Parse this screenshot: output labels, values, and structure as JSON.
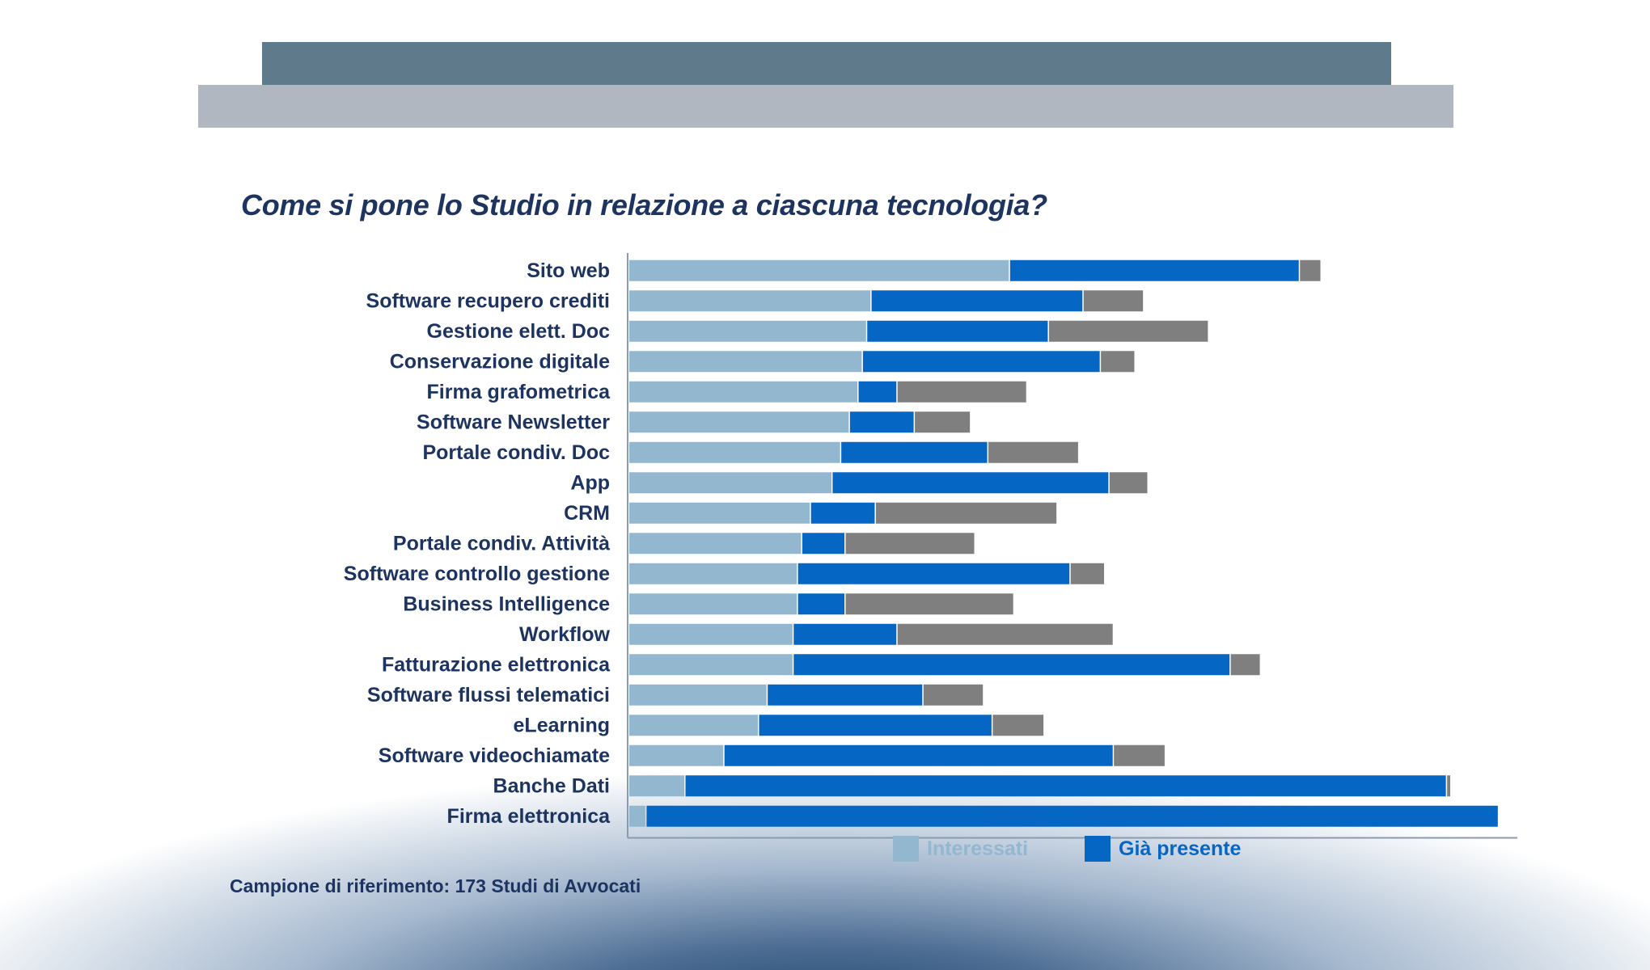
{
  "header": {
    "title": "Come si pone lo Studio in relazione a ciascuna tecnologia?"
  },
  "footer": {
    "note": "Campione di riferimento:  173 Studi di Avvocati"
  },
  "chart_data": {
    "type": "bar",
    "orientation": "horizontal",
    "stacked": true,
    "unit": "%",
    "title": "Come si pone lo Studio in relazione a ciascuna tecnologia?",
    "xlabel": "",
    "ylabel": "",
    "xlim": [
      0,
      100
    ],
    "grid": false,
    "legend_position": "bottom",
    "categories": [
      "Sito web",
      "Software recupero crediti",
      "Gestione elett. Doc",
      "Conservazione digitale",
      "Firma grafometrica",
      "Software Newsletter",
      "Portale condiv. Doc",
      "App",
      "CRM",
      "Portale condiv. Attività",
      "Software controllo gestione",
      "Business Intelligence",
      "Workflow",
      "Fatturazione elettronica",
      "Software flussi telematici",
      "eLearning",
      "Software videochiamate",
      "Banche Dati",
      "Firma elettronica"
    ],
    "series": [
      {
        "name": "Interessati",
        "color": "#93b7cf",
        "in_legend": true,
        "values": [
          44,
          28,
          27.5,
          27,
          26.5,
          25.5,
          24.5,
          23.5,
          21,
          20,
          19.5,
          19.5,
          19,
          19,
          16,
          15,
          11,
          6.5,
          2
        ]
      },
      {
        "name": "Già presente",
        "color": "#0566c4",
        "in_legend": true,
        "values": [
          33.5,
          24.5,
          21,
          27.5,
          4.5,
          7.5,
          17,
          32,
          7.5,
          5,
          31.5,
          5.5,
          12,
          50.5,
          18,
          27,
          45,
          88,
          98.5
        ]
      },
      {
        "name": "",
        "color": "#7f7f7f",
        "in_legend": false,
        "values": [
          2.5,
          7,
          18.5,
          4,
          15,
          6.5,
          10.5,
          4.5,
          21,
          15,
          4,
          19.5,
          25,
          3.5,
          7,
          6,
          6,
          0.5,
          0
        ]
      }
    ]
  }
}
